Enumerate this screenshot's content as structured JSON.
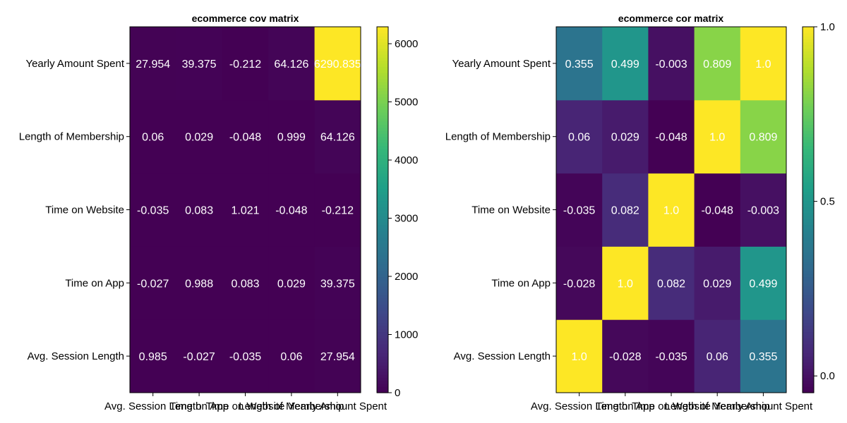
{
  "chart_data": [
    {
      "type": "heatmap",
      "title": "ecommerce cov matrix",
      "variables": [
        "Avg. Session Length",
        "Time on App",
        "Time on Website",
        "Length of Membership",
        "Yearly Amount Spent"
      ],
      "x_tick_labels": [
        "Avg. Session Length",
        "Time on App",
        "Time on Website",
        "Length of Membership",
        "Yearly Amount Spent"
      ],
      "y_tick_labels": [
        "Avg. Session Length",
        "Time on App",
        "Time on Website",
        "Length of Membership",
        "Yearly Amount Spent"
      ],
      "matrix": [
        [
          0.985,
          -0.027,
          -0.035,
          0.06,
          27.954
        ],
        [
          -0.027,
          0.988,
          0.083,
          0.029,
          39.375
        ],
        [
          -0.035,
          0.083,
          1.021,
          -0.048,
          -0.212
        ],
        [
          0.06,
          0.029,
          -0.048,
          0.999,
          64.126
        ],
        [
          27.954,
          39.375,
          -0.212,
          64.126,
          6290.835
        ]
      ],
      "cell_labels": [
        [
          "0.985",
          "-0.027",
          "-0.035",
          "0.06",
          "27.954"
        ],
        [
          "-0.027",
          "0.988",
          "0.083",
          "0.029",
          "39.375"
        ],
        [
          "-0.035",
          "0.083",
          "1.021",
          "-0.048",
          "-0.212"
        ],
        [
          "0.06",
          "0.029",
          "-0.048",
          "0.999",
          "64.126"
        ],
        [
          "27.954",
          "39.375",
          "-0.212",
          "64.126",
          "6290.835"
        ]
      ],
      "colormap": "viridis",
      "color_range": [
        0,
        6290.835
      ],
      "colorbar_ticks": [
        0,
        1000,
        2000,
        3000,
        4000,
        5000,
        6000
      ],
      "colorbar_tick_labels": [
        "0",
        "1000",
        "2000",
        "3000",
        "4000",
        "5000",
        "6000"
      ]
    },
    {
      "type": "heatmap",
      "title": "ecommerce cor matrix",
      "variables": [
        "Avg. Session Length",
        "Time on App",
        "Time on Website",
        "Length of Membership",
        "Yearly Amount Spent"
      ],
      "x_tick_labels": [
        "Avg. Session Length",
        "Time on App",
        "Time on Website",
        "Length of Membership",
        "Yearly Amount Spent"
      ],
      "y_tick_labels": [
        "Avg. Session Length",
        "Time on App",
        "Time on Website",
        "Length of Membership",
        "Yearly Amount Spent"
      ],
      "matrix": [
        [
          1.0,
          -0.028,
          -0.035,
          0.06,
          0.355
        ],
        [
          -0.028,
          1.0,
          0.082,
          0.029,
          0.499
        ],
        [
          -0.035,
          0.082,
          1.0,
          -0.048,
          -0.003
        ],
        [
          0.06,
          0.029,
          -0.048,
          1.0,
          0.809
        ],
        [
          0.355,
          0.499,
          -0.003,
          0.809,
          1.0
        ]
      ],
      "cell_labels": [
        [
          "1.0",
          "-0.028",
          "-0.035",
          "0.06",
          "0.355"
        ],
        [
          "-0.028",
          "1.0",
          "0.082",
          "0.029",
          "0.499"
        ],
        [
          "-0.035",
          "0.082",
          "1.0",
          "-0.048",
          "-0.003"
        ],
        [
          "0.06",
          "0.029",
          "-0.048",
          "1.0",
          "0.809"
        ],
        [
          "0.355",
          "0.499",
          "-0.003",
          "0.809",
          "1.0"
        ]
      ],
      "colormap": "viridis",
      "color_range": [
        -0.048,
        1.0
      ],
      "colorbar_ticks": [
        0.0,
        0.5,
        1.0
      ],
      "colorbar_tick_labels": [
        "0.0",
        "0.5",
        "1.0"
      ]
    }
  ]
}
